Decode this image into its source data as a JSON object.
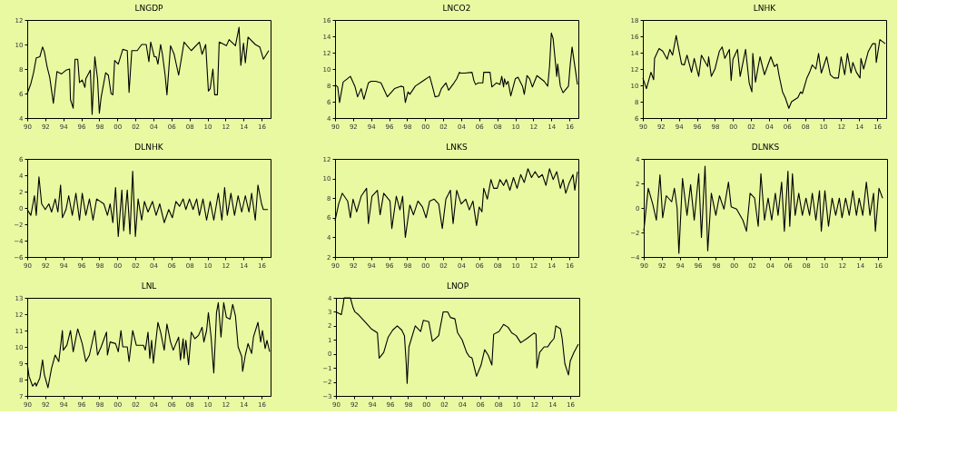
{
  "chart_data": [
    {
      "type": "line",
      "title": "LNGDP",
      "color": "#000000",
      "grid": false,
      "xlim": [
        1990,
        2017
      ],
      "ylim": [
        4,
        12
      ],
      "yticks": [
        4,
        6,
        8,
        10,
        12
      ],
      "xticks": [
        {
          "value": 1990,
          "label": "90"
        },
        {
          "value": 1992,
          "label": "92"
        },
        {
          "value": 1994,
          "label": "94"
        },
        {
          "value": 1996,
          "label": "96"
        },
        {
          "value": 1998,
          "label": "98"
        },
        {
          "value": 2000,
          "label": "00"
        },
        {
          "value": 2002,
          "label": "02"
        },
        {
          "value": 2004,
          "label": "04"
        },
        {
          "value": 2006,
          "label": "06"
        },
        {
          "value": 2008,
          "label": "08"
        },
        {
          "value": 2010,
          "label": "10"
        },
        {
          "value": 2012,
          "label": "12"
        },
        {
          "value": 2014,
          "label": "14"
        },
        {
          "value": 2016,
          "label": "16"
        }
      ],
      "x": [
        1990.0,
        1990.4,
        1990.7,
        1991.0,
        1991.4,
        1991.7,
        1991.9,
        1992.2,
        1992.5,
        1992.9,
        1993.3,
        1993.8,
        1994.3,
        1994.7,
        1994.8,
        1995.1,
        1995.3,
        1995.6,
        1995.8,
        1996.1,
        1996.4,
        1996.5,
        1997.0,
        1997.2,
        1997.5,
        1997.8,
        1998.0,
        1998.2,
        1998.7,
        1999.0,
        1999.3,
        1999.5,
        1999.7,
        2000.1,
        2000.6,
        2001.1,
        2001.3,
        2001.6,
        2002.2,
        2002.7,
        2003.2,
        2003.5,
        2003.7,
        2004.1,
        2004.3,
        2004.5,
        2004.8,
        2005.0,
        2005.3,
        2005.5,
        2005.9,
        2006.3,
        2006.8,
        2007.4,
        2008.2,
        2009.1,
        2009.4,
        2009.8,
        2010.1,
        2010.3,
        2010.6,
        2010.8,
        2011.1,
        2011.3,
        2012.1,
        2012.4,
        2013.1,
        2013.5,
        2013.7,
        2014.0,
        2014.2,
        2014.5,
        2015.3,
        2015.8,
        2016.2,
        2016.8
      ],
      "values": [
        6.0,
        6.8,
        7.7,
        8.9,
        9.0,
        9.8,
        9.4,
        8.2,
        7.3,
        5.2,
        7.8,
        7.6,
        7.9,
        8.0,
        5.5,
        4.8,
        8.8,
        8.8,
        6.9,
        7.1,
        6.5,
        7.2,
        7.9,
        4.3,
        9.0,
        7.2,
        4.4,
        5.7,
        7.7,
        7.5,
        6.0,
        5.9,
        8.7,
        8.4,
        9.6,
        9.5,
        6.1,
        9.5,
        9.5,
        10.0,
        10.0,
        8.6,
        10.2,
        9.0,
        9.0,
        8.4,
        10.0,
        9.2,
        7.5,
        5.9,
        9.9,
        9.2,
        7.5,
        10.2,
        9.5,
        10.2,
        9.2,
        10.0,
        6.2,
        6.4,
        8.0,
        5.9,
        5.9,
        10.2,
        9.9,
        10.4,
        9.9,
        11.4,
        8.3,
        10.1,
        8.5,
        10.6,
        10.0,
        9.8,
        8.8,
        9.5
      ]
    },
    {
      "type": "line",
      "title": "LNCO2",
      "color": "#000000",
      "grid": false,
      "xlim": [
        1990,
        2017
      ],
      "ylim": [
        4,
        16
      ],
      "yticks": [
        4,
        6,
        8,
        10,
        12,
        14,
        16
      ],
      "xticks": [
        {
          "value": 1990,
          "label": "90"
        },
        {
          "value": 1992,
          "label": "92"
        },
        {
          "value": 1994,
          "label": "94"
        },
        {
          "value": 1996,
          "label": "96"
        },
        {
          "value": 1998,
          "label": "98"
        },
        {
          "value": 2000,
          "label": "00"
        },
        {
          "value": 2002,
          "label": "02"
        },
        {
          "value": 2004,
          "label": "04"
        },
        {
          "value": 2006,
          "label": "06"
        },
        {
          "value": 2008,
          "label": "08"
        },
        {
          "value": 2010,
          "label": "10"
        },
        {
          "value": 2012,
          "label": "12"
        },
        {
          "value": 2014,
          "label": "14"
        },
        {
          "value": 2016,
          "label": "16"
        }
      ],
      "x": [
        1990.0,
        1990.3,
        1990.5,
        1990.9,
        1991.7,
        1992.2,
        1992.5,
        1992.9,
        1993.2,
        1993.7,
        1994.0,
        1994.5,
        1995.1,
        1995.8,
        1996.6,
        1997.3,
        1997.6,
        1997.8,
        1998.1,
        1998.3,
        1998.9,
        1999.7,
        2000.5,
        2000.8,
        2001.1,
        2001.5,
        2001.8,
        2002.3,
        2002.6,
        2003.2,
        2003.5,
        2003.8,
        2003.9,
        2004.4,
        2005.2,
        2005.4,
        2005.6,
        2005.9,
        2006.4,
        2006.5,
        2007.2,
        2007.4,
        2007.9,
        2008.3,
        2008.5,
        2008.7,
        2008.8,
        2009.0,
        2009.2,
        2009.5,
        2010.0,
        2010.3,
        2010.8,
        2011.0,
        2011.3,
        2011.6,
        2011.9,
        2012.4,
        2013.2,
        2013.6,
        2013.8,
        2014.0,
        2014.2,
        2014.6,
        2014.7,
        2015.0,
        2015.3,
        2015.9,
        2016.1,
        2016.3,
        2016.6,
        2016.9
      ],
      "values": [
        8.1,
        7.8,
        5.9,
        8.4,
        9.1,
        7.9,
        6.6,
        7.6,
        6.3,
        8.3,
        8.5,
        8.5,
        8.3,
        6.6,
        7.6,
        7.9,
        7.8,
        5.9,
        7.2,
        6.9,
        7.9,
        8.5,
        9.1,
        7.9,
        6.6,
        6.7,
        7.6,
        8.3,
        7.4,
        8.3,
        8.8,
        9.6,
        9.5,
        9.5,
        9.6,
        8.6,
        8.1,
        8.3,
        8.3,
        9.6,
        9.6,
        7.8,
        8.3,
        8.1,
        9.1,
        7.8,
        8.8,
        8.1,
        8.5,
        6.7,
        8.8,
        9.0,
        7.9,
        6.9,
        9.2,
        8.8,
        7.8,
        9.2,
        8.5,
        7.9,
        10.3,
        14.4,
        13.7,
        9.1,
        10.6,
        7.9,
        7.1,
        7.9,
        10.6,
        12.7,
        10.4,
        8.1
      ]
    },
    {
      "type": "line",
      "title": "LNHK",
      "color": "#000000",
      "grid": false,
      "xlim": [
        1990,
        2017
      ],
      "ylim": [
        6,
        18
      ],
      "yticks": [
        6,
        8,
        10,
        12,
        14,
        16,
        18
      ],
      "xticks": [
        {
          "value": 1990,
          "label": "90"
        },
        {
          "value": 1992,
          "label": "92"
        },
        {
          "value": 1994,
          "label": "94"
        },
        {
          "value": 1996,
          "label": "96"
        },
        {
          "value": 1998,
          "label": "98"
        },
        {
          "value": 2000,
          "label": "00"
        },
        {
          "value": 2002,
          "label": "02"
        },
        {
          "value": 2004,
          "label": "04"
        },
        {
          "value": 2006,
          "label": "06"
        },
        {
          "value": 2008,
          "label": "08"
        },
        {
          "value": 2010,
          "label": "10"
        },
        {
          "value": 2012,
          "label": "12"
        },
        {
          "value": 2014,
          "label": "14"
        },
        {
          "value": 2016,
          "label": "16"
        }
      ],
      "x": [
        1990.0,
        1990.4,
        1990.9,
        1991.2,
        1991.3,
        1991.8,
        1992.2,
        1992.7,
        1993.0,
        1993.3,
        1993.7,
        1993.9,
        1994.3,
        1994.6,
        1994.9,
        1995.4,
        1995.7,
        1996.2,
        1996.5,
        1997.2,
        1997.3,
        1997.6,
        1998.0,
        1998.5,
        1998.8,
        1999.1,
        1999.6,
        1999.8,
        2000.0,
        2000.5,
        2000.8,
        2001.4,
        2001.8,
        2002.1,
        2002.2,
        2002.5,
        2003.0,
        2003.5,
        2004.2,
        2004.6,
        2004.9,
        2005.1,
        2005.5,
        2005.8,
        2006.2,
        2006.5,
        2007.2,
        2007.5,
        2007.7,
        2008.2,
        2008.5,
        2008.8,
        2009.2,
        2009.5,
        2009.8,
        2010.4,
        2010.8,
        2011.2,
        2011.7,
        2012.0,
        2012.4,
        2012.7,
        2013.1,
        2013.3,
        2013.7,
        2014.1,
        2014.2,
        2014.5,
        2015.0,
        2015.5,
        2015.8,
        2015.9,
        2016.3,
        2016.9
      ],
      "values": [
        10.9,
        9.6,
        11.6,
        10.7,
        13.3,
        14.5,
        14.2,
        13.2,
        14.4,
        13.7,
        16.1,
        14.9,
        12.6,
        12.5,
        13.7,
        11.6,
        13.3,
        11.1,
        13.7,
        12.3,
        13.5,
        11.1,
        12.0,
        14.2,
        14.7,
        13.3,
        14.4,
        10.6,
        13.2,
        14.4,
        11.1,
        14.4,
        10.3,
        9.2,
        13.9,
        10.4,
        13.5,
        11.3,
        13.5,
        12.3,
        12.6,
        11.3,
        9.2,
        8.5,
        7.2,
        8.0,
        8.5,
        9.2,
        9.0,
        10.9,
        11.6,
        12.5,
        12.0,
        13.9,
        11.5,
        13.5,
        11.3,
        10.9,
        10.9,
        13.5,
        11.3,
        13.9,
        11.5,
        12.8,
        11.6,
        10.9,
        13.3,
        12.0,
        14.1,
        15.1,
        15.1,
        12.8,
        15.6,
        15.1
      ]
    },
    {
      "type": "line",
      "title": "DLNHK",
      "color": "#000000",
      "grid": false,
      "xlim": [
        1990,
        2017
      ],
      "ylim": [
        -6,
        6
      ],
      "yticks": [
        -6,
        -4,
        -2,
        0,
        2,
        4,
        6
      ],
      "xticks": [
        {
          "value": 1990,
          "label": "90"
        },
        {
          "value": 1992,
          "label": "92"
        },
        {
          "value": 1994,
          "label": "94"
        },
        {
          "value": 1996,
          "label": "96"
        },
        {
          "value": 1998,
          "label": "98"
        },
        {
          "value": 2000,
          "label": "00"
        },
        {
          "value": 2002,
          "label": "02"
        },
        {
          "value": 2004,
          "label": "04"
        },
        {
          "value": 2006,
          "label": "06"
        },
        {
          "value": 2008,
          "label": "08"
        },
        {
          "value": 2010,
          "label": "10"
        },
        {
          "value": 2012,
          "label": "12"
        },
        {
          "value": 2014,
          "label": "14"
        },
        {
          "value": 2016,
          "label": "16"
        }
      ],
      "x": [
        1990.0,
        1990.4,
        1990.8,
        1991.0,
        1991.3,
        1991.6,
        1992.0,
        1992.4,
        1992.7,
        1993.1,
        1993.4,
        1993.7,
        1993.9,
        1994.3,
        1994.6,
        1995.0,
        1995.4,
        1995.8,
        1996.1,
        1996.5,
        1996.9,
        1997.3,
        1997.7,
        1998.5,
        1998.9,
        1999.2,
        1999.5,
        1999.8,
        2000.1,
        2000.5,
        2000.7,
        2001.1,
        2001.4,
        2001.7,
        2002.0,
        2002.3,
        2002.7,
        2003.0,
        2003.4,
        2003.9,
        2004.3,
        2004.7,
        2005.2,
        2005.7,
        2006.1,
        2006.5,
        2006.9,
        2007.3,
        2007.6,
        2008.0,
        2008.4,
        2008.8,
        2009.1,
        2009.5,
        2009.9,
        2010.3,
        2010.7,
        2011.2,
        2011.6,
        2011.9,
        2012.2,
        2012.6,
        2013.0,
        2013.4,
        2013.8,
        2014.2,
        2014.6,
        2014.9,
        2015.3,
        2015.6,
        2016.0,
        2016.2,
        2016.7
      ],
      "values": [
        -0.2,
        -0.9,
        1.5,
        -0.9,
        3.8,
        0.5,
        -0.2,
        0.5,
        -0.5,
        1.1,
        -0.5,
        2.8,
        -1.2,
        -0.2,
        1.5,
        -0.9,
        1.8,
        -1.5,
        1.8,
        -0.9,
        1.1,
        -1.5,
        1.1,
        0.5,
        -0.9,
        0.5,
        -1.8,
        2.5,
        -3.5,
        2.2,
        -2.8,
        2.2,
        -3.2,
        4.5,
        -3.5,
        1.1,
        -1.5,
        0.8,
        -0.5,
        0.8,
        -0.9,
        0.5,
        -1.8,
        -0.2,
        -1.2,
        0.8,
        0.2,
        1.1,
        -0.2,
        1.1,
        -0.2,
        1.1,
        -0.9,
        1.1,
        -1.5,
        0.8,
        -1.5,
        1.8,
        -1.5,
        2.5,
        -0.9,
        1.8,
        -0.9,
        1.5,
        -0.5,
        1.5,
        -0.5,
        1.8,
        -1.5,
        2.8,
        0.5,
        -0.2,
        -0.2
      ]
    },
    {
      "type": "line",
      "title": "LNKS",
      "color": "#000000",
      "grid": false,
      "xlim": [
        1990,
        2017
      ],
      "ylim": [
        2,
        12
      ],
      "yticks": [
        2,
        4,
        6,
        8,
        10,
        12
      ],
      "xticks": [
        {
          "value": 1990,
          "label": "90"
        },
        {
          "value": 1992,
          "label": "92"
        },
        {
          "value": 1994,
          "label": "94"
        },
        {
          "value": 1996,
          "label": "96"
        },
        {
          "value": 1998,
          "label": "98"
        },
        {
          "value": 2000,
          "label": "00"
        },
        {
          "value": 2002,
          "label": "02"
        },
        {
          "value": 2004,
          "label": "04"
        },
        {
          "value": 2006,
          "label": "06"
        },
        {
          "value": 2008,
          "label": "08"
        },
        {
          "value": 2010,
          "label": "10"
        },
        {
          "value": 2012,
          "label": "12"
        },
        {
          "value": 2014,
          "label": "14"
        },
        {
          "value": 2016,
          "label": "16"
        }
      ],
      "x": [
        1990.0,
        1990.4,
        1990.8,
        1991.4,
        1991.7,
        1992.0,
        1992.4,
        1992.9,
        1993.5,
        1993.7,
        1994.1,
        1994.7,
        1995.0,
        1995.4,
        1996.1,
        1996.3,
        1996.8,
        1997.2,
        1997.5,
        1997.8,
        1998.3,
        1998.7,
        1999.2,
        1999.7,
        2000.1,
        2000.5,
        2001.0,
        2001.5,
        2001.9,
        2002.3,
        2002.8,
        2003.1,
        2003.5,
        2004.0,
        2004.5,
        2004.9,
        2005.3,
        2005.7,
        2006.0,
        2006.3,
        2006.5,
        2006.9,
        2007.3,
        2007.6,
        2008.0,
        2008.3,
        2008.7,
        2009.0,
        2009.4,
        2009.8,
        2010.2,
        2010.6,
        2011.0,
        2011.4,
        2011.8,
        2012.2,
        2012.6,
        2013.0,
        2013.4,
        2013.8,
        2014.2,
        2014.6,
        2015.0,
        2015.3,
        2015.6,
        2016.0,
        2016.4,
        2016.6,
        2016.9
      ],
      "values": [
        5.7,
        7.4,
        8.5,
        7.7,
        6.0,
        7.9,
        6.6,
        8.2,
        9.0,
        5.4,
        8.2,
        8.8,
        6.3,
        8.5,
        7.7,
        4.9,
        8.2,
        6.8,
        8.2,
        4.0,
        7.3,
        6.3,
        7.7,
        7.1,
        6.0,
        7.7,
        7.9,
        7.4,
        4.9,
        7.9,
        8.8,
        5.4,
        8.8,
        7.4,
        7.9,
        6.8,
        7.7,
        5.2,
        7.1,
        6.6,
        9.0,
        7.9,
        9.9,
        9.0,
        9.0,
        9.9,
        9.3,
        9.9,
        8.8,
        10.1,
        9.0,
        10.4,
        9.6,
        11.0,
        10.1,
        10.7,
        10.1,
        10.4,
        9.3,
        11.0,
        9.9,
        10.7,
        9.0,
        9.9,
        8.5,
        9.6,
        10.4,
        8.8,
        10.7
      ]
    },
    {
      "type": "line",
      "title": "DLNKS",
      "color": "#000000",
      "grid": false,
      "xlim": [
        1990,
        2017
      ],
      "ylim": [
        -4,
        4
      ],
      "yticks": [
        -4,
        -2,
        0,
        2,
        4
      ],
      "xticks": [
        {
          "value": 1990,
          "label": "90"
        },
        {
          "value": 1992,
          "label": "92"
        },
        {
          "value": 1994,
          "label": "94"
        },
        {
          "value": 1996,
          "label": "96"
        },
        {
          "value": 1998,
          "label": "98"
        },
        {
          "value": 2000,
          "label": "00"
        },
        {
          "value": 2002,
          "label": "02"
        },
        {
          "value": 2004,
          "label": "04"
        },
        {
          "value": 2006,
          "label": "06"
        },
        {
          "value": 2008,
          "label": "08"
        },
        {
          "value": 2010,
          "label": "10"
        },
        {
          "value": 2012,
          "label": "12"
        },
        {
          "value": 2014,
          "label": "14"
        },
        {
          "value": 2016,
          "label": "16"
        }
      ],
      "x": [
        1990.0,
        1990.5,
        1991.0,
        1991.4,
        1991.8,
        1992.1,
        1992.5,
        1993.1,
        1993.4,
        1993.7,
        1993.9,
        1994.3,
        1994.8,
        1995.2,
        1995.6,
        1996.1,
        1996.4,
        1996.8,
        1997.1,
        1997.5,
        1998.0,
        1998.4,
        1998.9,
        1999.4,
        1999.7,
        2000.3,
        2001.0,
        2001.4,
        2001.8,
        2002.3,
        2002.7,
        2003.0,
        2003.4,
        2003.8,
        2004.2,
        2004.6,
        2004.9,
        2005.3,
        2005.6,
        2006.0,
        2006.2,
        2006.5,
        2006.8,
        2007.2,
        2007.6,
        2008.0,
        2008.4,
        2008.7,
        2009.1,
        2009.5,
        2009.7,
        2010.1,
        2010.5,
        2010.9,
        2011.3,
        2011.7,
        2012.0,
        2012.4,
        2012.8,
        2013.2,
        2013.6,
        2013.9,
        2014.3,
        2014.7,
        2015.1,
        2015.5,
        2015.7,
        2016.1,
        2016.5
      ],
      "values": [
        -1.9,
        1.6,
        0.3,
        -1.0,
        2.7,
        -0.8,
        1.0,
        0.5,
        1.6,
        0.0,
        -3.7,
        2.4,
        -0.6,
        1.9,
        -1.0,
        2.8,
        -2.4,
        3.4,
        -3.5,
        1.2,
        -0.6,
        1.0,
        -0.1,
        2.1,
        0.1,
        -0.1,
        -1.0,
        -1.9,
        1.2,
        0.8,
        -1.5,
        2.8,
        -1.0,
        0.8,
        -1.0,
        1.2,
        -0.6,
        2.1,
        -1.9,
        3.0,
        -1.5,
        2.8,
        -0.6,
        1.2,
        -0.6,
        0.8,
        -0.6,
        1.2,
        -1.0,
        1.4,
        -1.9,
        1.4,
        -1.5,
        0.8,
        -0.6,
        0.8,
        -0.8,
        0.8,
        -0.6,
        1.4,
        -0.6,
        0.8,
        -0.6,
        2.1,
        -0.6,
        1.2,
        -1.9,
        1.6,
        0.8
      ]
    },
    {
      "type": "line",
      "title": "LNL",
      "color": "#000000",
      "grid": false,
      "xlim": [
        1990,
        2017
      ],
      "ylim": [
        7,
        13
      ],
      "yticks": [
        7,
        8,
        9,
        10,
        11,
        12,
        13
      ],
      "xticks": [
        {
          "value": 1990,
          "label": "90"
        },
        {
          "value": 1992,
          "label": "92"
        },
        {
          "value": 1994,
          "label": "94"
        },
        {
          "value": 1996,
          "label": "96"
        },
        {
          "value": 1998,
          "label": "98"
        },
        {
          "value": 2000,
          "label": "00"
        },
        {
          "value": 2002,
          "label": "02"
        },
        {
          "value": 2004,
          "label": "04"
        },
        {
          "value": 2006,
          "label": "06"
        },
        {
          "value": 2008,
          "label": "08"
        },
        {
          "value": 2010,
          "label": "10"
        },
        {
          "value": 2012,
          "label": "12"
        },
        {
          "value": 2014,
          "label": "14"
        },
        {
          "value": 2016,
          "label": "16"
        }
      ],
      "x": [
        1990.0,
        1990.2,
        1990.6,
        1990.9,
        1991.0,
        1991.4,
        1991.7,
        1991.9,
        1992.3,
        1992.7,
        1993.1,
        1993.5,
        1993.9,
        1994.0,
        1994.4,
        1994.8,
        1995.1,
        1995.6,
        1996.1,
        1996.5,
        1996.9,
        1997.5,
        1997.8,
        1998.2,
        1998.8,
        1998.9,
        1999.2,
        1999.8,
        2000.1,
        2000.4,
        2000.6,
        2001.1,
        2001.3,
        2001.7,
        2002.1,
        2002.4,
        2002.9,
        2003.1,
        2003.4,
        2003.6,
        2003.8,
        2004.0,
        2004.5,
        2004.8,
        2005.2,
        2005.5,
        2005.9,
        2006.2,
        2006.8,
        2007.0,
        2007.3,
        2007.4,
        2007.6,
        2007.9,
        2008.2,
        2008.6,
        2009.0,
        2009.4,
        2009.6,
        2009.9,
        2010.1,
        2010.4,
        2010.6,
        2010.7,
        2011.0,
        2011.2,
        2011.5,
        2011.8,
        2012.1,
        2012.5,
        2012.8,
        2013.1,
        2013.4,
        2013.8,
        2013.9,
        2014.2,
        2014.5,
        2014.9,
        2015.1,
        2015.6,
        2015.9,
        2016.1,
        2016.4,
        2016.6,
        2016.9
      ],
      "values": [
        9.0,
        8.2,
        7.6,
        7.8,
        7.6,
        8.1,
        9.2,
        8.3,
        7.5,
        8.7,
        9.5,
        9.1,
        11.0,
        9.8,
        10.1,
        11.0,
        9.7,
        11.1,
        10.2,
        9.1,
        9.5,
        11.0,
        9.5,
        10.0,
        10.9,
        9.5,
        10.3,
        10.2,
        9.7,
        11.0,
        10.0,
        10.0,
        9.1,
        11.0,
        10.1,
        10.1,
        10.1,
        9.8,
        10.9,
        9.3,
        10.4,
        9.0,
        11.5,
        10.9,
        9.8,
        11.4,
        10.3,
        9.8,
        10.6,
        9.2,
        10.5,
        9.3,
        10.4,
        8.9,
        10.9,
        10.5,
        10.7,
        11.2,
        10.3,
        11.0,
        12.1,
        10.6,
        9.1,
        8.4,
        12.1,
        12.7,
        10.6,
        12.7,
        11.8,
        11.7,
        12.6,
        11.9,
        10.0,
        9.4,
        8.5,
        9.5,
        10.2,
        9.6,
        10.6,
        11.5,
        10.3,
        11.0,
        9.9,
        10.4,
        9.7
      ]
    },
    {
      "type": "line",
      "title": "LNOP",
      "color": "#000000",
      "grid": false,
      "xlim": [
        1990,
        2017
      ],
      "ylim": [
        -3,
        4
      ],
      "yticks": [
        -3,
        -2,
        -1,
        0,
        1,
        2,
        3,
        4
      ],
      "xticks": [
        {
          "value": 1990,
          "label": "90"
        },
        {
          "value": 1992,
          "label": "92"
        },
        {
          "value": 1994,
          "label": "94"
        },
        {
          "value": 1996,
          "label": "96"
        },
        {
          "value": 1998,
          "label": "98"
        },
        {
          "value": 2000,
          "label": "00"
        },
        {
          "value": 2002,
          "label": "02"
        },
        {
          "value": 2004,
          "label": "04"
        },
        {
          "value": 2006,
          "label": "06"
        },
        {
          "value": 2008,
          "label": "08"
        },
        {
          "value": 2010,
          "label": "10"
        },
        {
          "value": 2012,
          "label": "12"
        },
        {
          "value": 2014,
          "label": "14"
        },
        {
          "value": 2016,
          "label": "16"
        }
      ],
      "x": [
        1990.0,
        1990.6,
        1990.8,
        1990.9,
        1991.6,
        1991.9,
        1992.1,
        1992.5,
        1993.2,
        1993.9,
        1994.6,
        1994.8,
        1995.3,
        1995.8,
        1996.3,
        1996.8,
        1997.3,
        1997.6,
        1997.8,
        1997.9,
        1998.1,
        1998.8,
        1999.4,
        1999.7,
        2000.3,
        2000.7,
        2001.4,
        2001.9,
        2002.4,
        2002.7,
        2003.2,
        2003.5,
        2004.0,
        2004.5,
        2004.8,
        2005.1,
        2005.6,
        2006.1,
        2006.5,
        2006.9,
        2007.3,
        2007.5,
        2008.1,
        2008.6,
        2009.1,
        2009.5,
        2010.0,
        2010.5,
        2011.2,
        2012.0,
        2012.2,
        2012.3,
        2012.6,
        2013.1,
        2013.5,
        2013.8,
        2014.2,
        2014.4,
        2014.9,
        2015.1,
        2015.4,
        2015.8,
        2016.0,
        2016.4,
        2016.9
      ],
      "values": [
        3.0,
        2.8,
        3.5,
        4.0,
        4.0,
        3.3,
        3.0,
        2.8,
        2.3,
        1.8,
        1.5,
        -0.3,
        0.1,
        1.2,
        1.7,
        2.0,
        1.7,
        1.3,
        -0.7,
        -2.1,
        0.5,
        2.0,
        1.6,
        2.4,
        2.3,
        0.9,
        1.3,
        3.0,
        3.0,
        2.6,
        2.5,
        1.5,
        1.0,
        0.1,
        -0.2,
        -0.3,
        -1.6,
        -0.8,
        0.3,
        -0.1,
        -0.8,
        1.4,
        1.6,
        2.1,
        1.9,
        1.5,
        1.3,
        0.8,
        1.1,
        1.5,
        1.4,
        -1.0,
        0.1,
        0.5,
        0.5,
        0.8,
        1.1,
        2.0,
        1.8,
        1.1,
        -0.7,
        -1.5,
        -0.5,
        0.1,
        0.7
      ]
    }
  ]
}
